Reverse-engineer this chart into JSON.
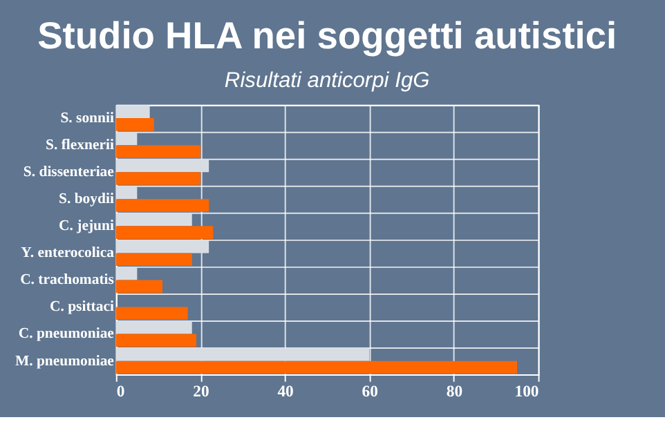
{
  "chart_data": {
    "type": "bar",
    "orientation": "horizontal",
    "title": "Studio HLA nei soggetti autistici",
    "subtitle": "Risultati anticorpi IgG",
    "categories": [
      "S. sonnii",
      "S. flexnerii",
      "S. dissenteriae",
      "S. boydii",
      "C. jejuni",
      "Y. enterocolica",
      "C. trachomatis",
      "C. psittaci",
      "C. pneumoniae",
      "M. pneumoniae"
    ],
    "series": [
      {
        "color": "#d8dde4",
        "values": [
          8,
          5,
          22,
          5,
          18,
          22,
          5,
          0,
          18,
          60
        ]
      },
      {
        "color": "#ff6600",
        "values": [
          9,
          20,
          20,
          22,
          23,
          18,
          11,
          17,
          19,
          95
        ]
      }
    ],
    "xlim": [
      0,
      100
    ],
    "xticks": [
      0,
      20,
      40,
      60,
      80,
      100
    ],
    "grid": true,
    "legend": false
  }
}
